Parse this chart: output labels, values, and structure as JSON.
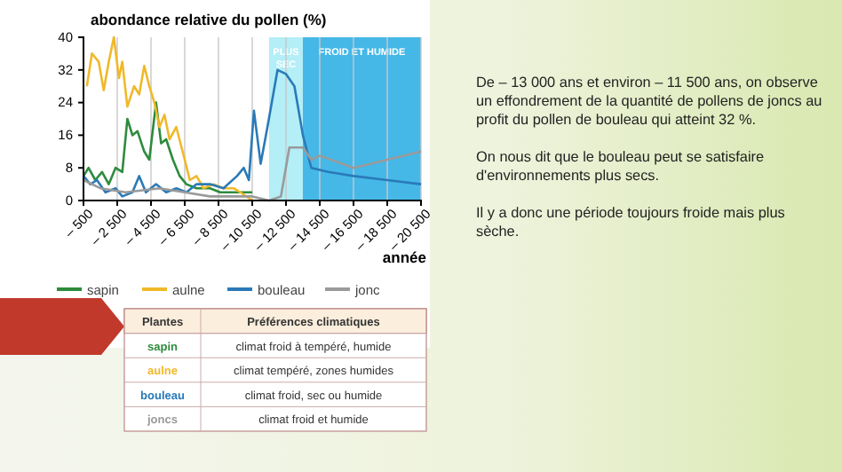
{
  "chart_data": [
    {
      "type": "line",
      "title": "abondance relative du pollen (%)",
      "xlabel": "année",
      "xlim": [
        -500,
        -20500
      ],
      "xticks": [
        {
          "value": -500,
          "label": "– 500"
        },
        {
          "value": -2500,
          "label": "– 2 500"
        },
        {
          "value": -4500,
          "label": "– 4 500"
        },
        {
          "value": -6500,
          "label": "– 6 500"
        },
        {
          "value": -8500,
          "label": "– 8 500"
        },
        {
          "value": -10500,
          "label": "– 10 500"
        },
        {
          "value": -12500,
          "label": "– 12 500"
        },
        {
          "value": -14500,
          "label": "– 14 500"
        },
        {
          "value": -16500,
          "label": "– 16 500"
        },
        {
          "value": -18500,
          "label": "– 18 500"
        },
        {
          "value": -20500,
          "label": "– 20 500"
        }
      ],
      "ylim": [
        0,
        40
      ],
      "yticks": [
        0,
        8,
        16,
        24,
        32,
        40
      ],
      "grid": "x",
      "legend": "bottom",
      "marker": "none",
      "line_style": "solid",
      "bands": [
        {
          "axis": "x",
          "from": -11500,
          "to": -13500,
          "label": "PLUS SEC",
          "color": "#b4eef7"
        },
        {
          "axis": "x",
          "from": -13500,
          "to": -20500,
          "label": "FROID ET HUMIDE",
          "color": "#45b8e8"
        }
      ],
      "series": [
        {
          "name": "sapin",
          "color": "#2e8b3e",
          "x": [
            -500,
            -800,
            -1200,
            -1600,
            -2000,
            -2400,
            -2800,
            -3100,
            -3400,
            -3700,
            -4100,
            -4400,
            -4800,
            -5100,
            -5400,
            -5800,
            -6200,
            -6600,
            -7200,
            -8000,
            -8600,
            -9400,
            -10000,
            -10500
          ],
          "values": [
            6,
            8,
            5,
            7,
            4,
            8,
            7,
            20,
            16,
            17,
            12,
            10,
            24,
            14,
            15,
            10,
            6,
            4,
            3,
            3,
            2,
            2,
            2,
            2
          ]
        },
        {
          "name": "aulne",
          "color": "#f0b92a",
          "x": [
            -700,
            -1000,
            -1400,
            -1700,
            -2000,
            -2300,
            -2600,
            -2800,
            -3100,
            -3500,
            -3800,
            -4100,
            -4400,
            -4700,
            -5000,
            -5300,
            -5600,
            -6000,
            -6500,
            -6800,
            -7200,
            -7600,
            -8200,
            -8800,
            -9400,
            -9800,
            -10500
          ],
          "values": [
            28,
            36,
            34,
            27,
            34,
            40,
            30,
            34,
            23,
            28,
            26,
            33,
            28,
            24,
            18,
            21,
            15,
            18,
            10,
            5,
            6,
            3,
            4,
            3,
            3,
            2,
            0
          ]
        },
        {
          "name": "bouleau",
          "color": "#2a7ab8",
          "x": [
            -500,
            -900,
            -1300,
            -1800,
            -2400,
            -2800,
            -3400,
            -3800,
            -4200,
            -4800,
            -5400,
            -6000,
            -6600,
            -7200,
            -8000,
            -8800,
            -9600,
            -10000,
            -10300,
            -10600,
            -11000,
            -11400,
            -12000,
            -12500,
            -13000,
            -13500,
            -14000,
            -15000,
            -16500,
            -18500,
            -20500
          ],
          "values": [
            6,
            4,
            5,
            2,
            3,
            1,
            2,
            6,
            2,
            4,
            2,
            3,
            2,
            4,
            4,
            3,
            6,
            8,
            5,
            22,
            9,
            18,
            32,
            31,
            28,
            16,
            8,
            7,
            6,
            5,
            4
          ]
        },
        {
          "name": "jonc",
          "color": "#9a9a9a",
          "x": [
            -500,
            -1500,
            -3000,
            -5000,
            -6500,
            -8000,
            -9500,
            -10500,
            -11500,
            -12200,
            -12700,
            -13500,
            -14000,
            -14500,
            -16500,
            -20500
          ],
          "values": [
            5,
            3,
            2,
            3,
            2,
            1,
            1,
            1,
            0,
            1,
            13,
            13,
            10,
            11,
            8,
            12
          ]
        }
      ],
      "annotations": [
        "De – 13 000 ans et environ – 11 500 ans, on observe un effondrement de la quantité de pollens de joncs au profit du pollen de bouleau qui atteint 32 %.",
        "On nous dit que le bouleau peut se satisfaire d'environnements plus secs.",
        "Il y a donc une période toujours froide mais plus sèche."
      ]
    },
    {
      "type": "other",
      "xlabel": "Plantes",
      "ylabel": "Préférences climatiques",
      "categories": [
        "sapin",
        "aulne",
        "bouleau",
        "joncs"
      ],
      "annotations": [
        "climat froid à tempéré, humide",
        "climat tempéré, zones humides",
        "climat froid, sec ou humide",
        "climat froid et humide"
      ]
    }
  ]
}
